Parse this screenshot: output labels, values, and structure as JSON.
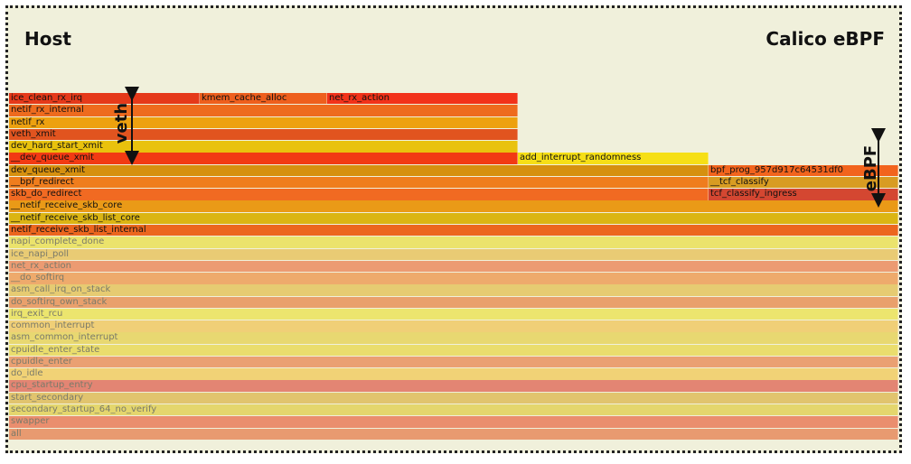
{
  "titles": {
    "left": "Host",
    "right": "Calico eBPF"
  },
  "annotations": {
    "veth": "veth",
    "ebpf": "eBPF"
  },
  "colors": {
    "background": "#f0f0db",
    "border": "#222222"
  },
  "rows": [
    {
      "style": "strong",
      "frames": [
        {
          "name": "ice_clean_rx_irq",
          "color": "#e5391a"
        },
        {
          "name": "kmem_cache_alloc",
          "color": "#ee5f1d"
        },
        {
          "name": "net_rx_action",
          "color": "#f2321a"
        }
      ]
    },
    {
      "style": "strong",
      "frames": [
        {
          "name": "netif_rx_internal",
          "color": "#ee6b1e"
        }
      ]
    },
    {
      "style": "strong",
      "frames": [
        {
          "name": "netif_rx",
          "color": "#eda10f"
        }
      ]
    },
    {
      "style": "strong",
      "frames": [
        {
          "name": "veth_xmit",
          "color": "#e1541f"
        }
      ]
    },
    {
      "style": "strong",
      "frames": [
        {
          "name": "dev_hard_start_xmit",
          "color": "#e9c20d"
        }
      ]
    },
    {
      "style": "strong",
      "frames": [
        {
          "name": "__dev_queue_xmit",
          "color": "#f23a13"
        },
        {
          "name": "add_interrupt_randomness",
          "color": "#f6df16"
        }
      ]
    },
    {
      "style": "strong",
      "frames": [
        {
          "name": "dev_queue_xmit",
          "color": "#d6900f"
        },
        {
          "name": "bpf_prog_957d917c64531df0",
          "color": "#f2641d"
        }
      ]
    },
    {
      "style": "strong",
      "frames": [
        {
          "name": "__bpf_redirect",
          "color": "#ef7d1d"
        },
        {
          "name": "__tcf_classify",
          "color": "#d89c22"
        }
      ]
    },
    {
      "style": "strong",
      "frames": [
        {
          "name": "skb_do_redirect",
          "color": "#f16a22"
        },
        {
          "name": "tcf_classify_ingress",
          "color": "#d44731"
        }
      ]
    },
    {
      "style": "strong",
      "frames": [
        {
          "name": "__netif_receive_skb_core",
          "color": "#ea9a17"
        }
      ]
    },
    {
      "style": "strong",
      "frames": [
        {
          "name": "__netif_receive_skb_list_core",
          "color": "#dbb513"
        }
      ]
    },
    {
      "style": "strong",
      "frames": [
        {
          "name": "netif_receive_skb_list_internal",
          "color": "#ec661e"
        }
      ]
    },
    {
      "style": "faded",
      "frames": [
        {
          "name": "napi_complete_done",
          "color": "#ebe36c"
        }
      ]
    },
    {
      "style": "faded",
      "frames": [
        {
          "name": "ice_napi_poll",
          "color": "#e9cb74"
        }
      ]
    },
    {
      "style": "faded",
      "frames": [
        {
          "name": "net_rx_action",
          "color": "#ec9b72"
        }
      ]
    },
    {
      "style": "faded",
      "frames": [
        {
          "name": "__do_softirq",
          "color": "#eeaa6c"
        }
      ]
    },
    {
      "style": "faded",
      "frames": [
        {
          "name": "asm_call_irq_on_stack",
          "color": "#e6cb72"
        }
      ]
    },
    {
      "style": "faded",
      "frames": [
        {
          "name": "do_softirq_own_stack",
          "color": "#e9a06c"
        }
      ]
    },
    {
      "style": "faded",
      "frames": [
        {
          "name": "irq_exit_rcu",
          "color": "#ece56e"
        }
      ]
    },
    {
      "style": "faded",
      "frames": [
        {
          "name": "common_interrupt",
          "color": "#f0cf77"
        }
      ]
    },
    {
      "style": "faded",
      "frames": [
        {
          "name": "asm_common_interrupt",
          "color": "#e8d871"
        }
      ]
    },
    {
      "style": "faded",
      "frames": [
        {
          "name": "cpuidle_enter_state",
          "color": "#eadd6d"
        }
      ]
    },
    {
      "style": "faded",
      "frames": [
        {
          "name": "cpuidle_enter",
          "color": "#eaa072"
        }
      ]
    },
    {
      "style": "faded",
      "frames": [
        {
          "name": "do_idle",
          "color": "#f1d276"
        }
      ]
    },
    {
      "style": "faded",
      "frames": [
        {
          "name": "cpu_startup_entry",
          "color": "#e38573"
        }
      ]
    },
    {
      "style": "faded",
      "frames": [
        {
          "name": "start_secondary",
          "color": "#e1c46e"
        }
      ]
    },
    {
      "style": "faded",
      "frames": [
        {
          "name": "secondary_startup_64_no_verify",
          "color": "#e4d66d"
        }
      ]
    },
    {
      "style": "faded",
      "frames": [
        {
          "name": "swapper",
          "color": "#ea8e6e"
        }
      ]
    },
    {
      "style": "faded",
      "frames": [
        {
          "name": "all",
          "color": "#e89a70"
        }
      ]
    }
  ]
}
